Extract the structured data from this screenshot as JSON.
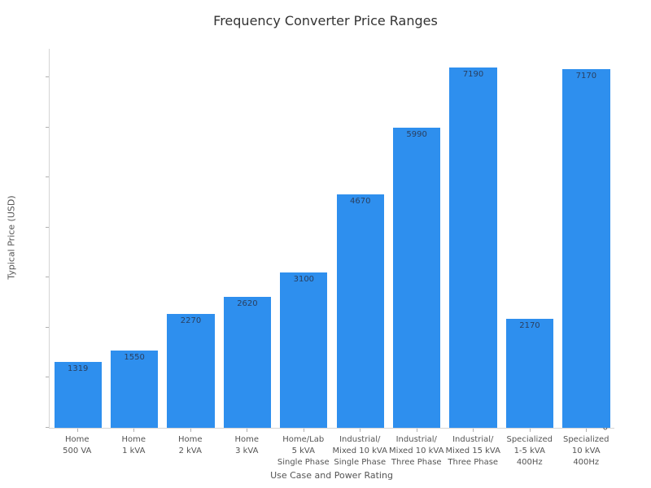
{
  "chart_data": {
    "type": "bar",
    "title": "Frequency Converter Price Ranges",
    "xlabel": "Use Case and Power Rating",
    "ylabel": "Typical Price (USD)",
    "ylim": [
      0,
      7570
    ],
    "yticks": [
      0,
      1000,
      2000,
      3000,
      4000,
      5000,
      6000,
      7000
    ],
    "grid": false,
    "legend": null,
    "bar_color": "#2E8FEE",
    "value_label_color": "#2a3f5f",
    "categories": [
      [
        "Home",
        "500 VA"
      ],
      [
        "Home",
        "1 kVA"
      ],
      [
        "Home",
        "2 kVA"
      ],
      [
        "Home",
        "3 kVA"
      ],
      [
        "Home/Lab",
        "5 kVA",
        "Single Phase"
      ],
      [
        "Industrial/",
        "Mixed 10 kVA",
        "Single Phase"
      ],
      [
        "Industrial/",
        "Mixed 10 kVA",
        "Three Phase"
      ],
      [
        "Industrial/",
        "Mixed 15 kVA",
        "Three Phase"
      ],
      [
        "Specialized",
        "1-5 kVA",
        "400Hz"
      ],
      [
        "Specialized",
        "10 kVA",
        "400Hz"
      ]
    ],
    "values": [
      1319,
      1550,
      2270,
      2620,
      3100,
      4670,
      5990,
      7190,
      2170,
      7170
    ],
    "value_labels": [
      "1319",
      "1550",
      "2270",
      "2620",
      "3100",
      "4670",
      "5990",
      "7190",
      "2170",
      "7170"
    ]
  }
}
